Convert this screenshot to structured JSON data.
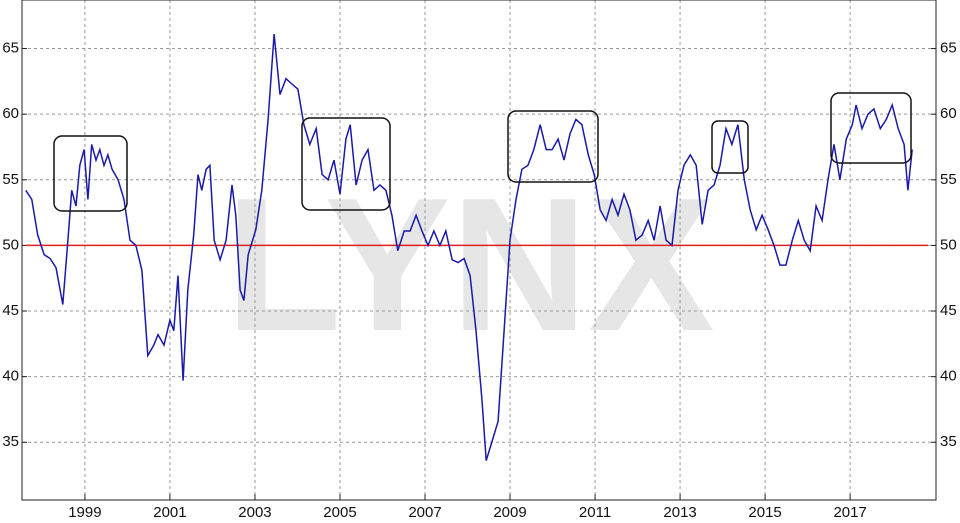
{
  "chart_data": {
    "type": "line",
    "watermark": "LYNX",
    "x": [
      1997.61,
      1997.75,
      1997.89,
      1998.04,
      1998.18,
      1998.32,
      1998.48,
      1998.6,
      1998.69,
      1998.79,
      1998.88,
      1998.98,
      1999.07,
      1999.16,
      1999.26,
      1999.35,
      1999.45,
      1999.54,
      1999.64,
      1999.78,
      1999.92,
      2000.06,
      2000.2,
      2000.34,
      2000.48,
      2000.62,
      2000.72,
      2000.86,
      2001.0,
      2001.09,
      2001.19,
      2001.31,
      2001.42,
      2001.56,
      2001.66,
      2001.75,
      2001.85,
      2001.94,
      2002.04,
      2002.18,
      2002.32,
      2002.46,
      2002.55,
      2002.65,
      2002.74,
      2002.84,
      2003.02,
      2003.16,
      2003.31,
      2003.45,
      2003.59,
      2003.73,
      2003.87,
      2004.01,
      2004.15,
      2004.29,
      2004.44,
      2004.58,
      2004.72,
      2004.86,
      2005.0,
      2005.14,
      2005.24,
      2005.38,
      2005.52,
      2005.66,
      2005.8,
      2005.94,
      2006.08,
      2006.22,
      2006.36,
      2006.51,
      2006.65,
      2006.79,
      2006.93,
      2007.07,
      2007.21,
      2007.35,
      2007.49,
      2007.64,
      2007.78,
      2007.92,
      2008.06,
      2008.2,
      2008.34,
      2008.44,
      2008.58,
      2008.72,
      2008.86,
      2009.0,
      2009.14,
      2009.28,
      2009.42,
      2009.56,
      2009.71,
      2009.85,
      2009.99,
      2010.13,
      2010.27,
      2010.41,
      2010.55,
      2010.69,
      2010.84,
      2010.98,
      2011.12,
      2011.26,
      2011.4,
      2011.54,
      2011.68,
      2011.82,
      2011.96,
      2012.11,
      2012.25,
      2012.39,
      2012.53,
      2012.67,
      2012.81,
      2012.95,
      2013.09,
      2013.24,
      2013.38,
      2013.52,
      2013.66,
      2013.8,
      2013.94,
      2014.08,
      2014.22,
      2014.36,
      2014.51,
      2014.65,
      2014.79,
      2014.93,
      2015.07,
      2015.21,
      2015.35,
      2015.49,
      2015.64,
      2015.78,
      2015.92,
      2016.06,
      2016.2,
      2016.34,
      2016.48,
      2016.62,
      2016.76,
      2016.91,
      2017.05,
      2017.14,
      2017.28,
      2017.42,
      2017.56,
      2017.71,
      2017.85,
      2017.99,
      2018.13,
      2018.27,
      2018.36,
      2018.46
    ],
    "series": [
      {
        "color": "#1a1aa8",
        "values": [
          54.2,
          53.5,
          50.8,
          49.3,
          49.0,
          48.3,
          45.5,
          50.4,
          54.2,
          53.0,
          56.1,
          57.3,
          53.5,
          57.7,
          56.5,
          57.3,
          56.1,
          56.9,
          55.8,
          55.0,
          53.5,
          50.4,
          50.0,
          48.1,
          41.6,
          42.4,
          43.2,
          42.4,
          44.3,
          43.5,
          47.7,
          39.7,
          46.6,
          50.8,
          55.4,
          54.2,
          55.8,
          56.1,
          50.4,
          48.9,
          50.4,
          54.6,
          52.3,
          46.6,
          45.8,
          49.3,
          51.2,
          54.2,
          59.6,
          66.1,
          61.5,
          62.7,
          62.3,
          61.9,
          59.2,
          57.7,
          58.9,
          55.4,
          55.0,
          56.5,
          53.9,
          58.1,
          59.2,
          54.6,
          56.5,
          57.3,
          54.2,
          54.6,
          54.2,
          52.3,
          49.6,
          51.1,
          51.1,
          52.3,
          51.1,
          50.0,
          51.1,
          50.0,
          51.1,
          48.9,
          48.7,
          49.0,
          47.7,
          43.5,
          38.2,
          33.6,
          35.1,
          36.6,
          43.5,
          50.4,
          53.5,
          55.8,
          56.1,
          57.3,
          59.2,
          57.3,
          57.3,
          58.1,
          56.5,
          58.5,
          59.6,
          59.2,
          56.9,
          55.4,
          52.7,
          51.9,
          53.5,
          52.3,
          53.9,
          52.7,
          50.4,
          50.8,
          51.9,
          50.4,
          53.0,
          50.4,
          50.0,
          54.2,
          56.1,
          56.9,
          56.1,
          51.6,
          54.2,
          54.6,
          56.1,
          58.9,
          57.7,
          59.2,
          55.0,
          52.7,
          51.2,
          52.3,
          51.2,
          50.0,
          48.5,
          48.5,
          50.4,
          51.9,
          50.4,
          49.6,
          53.0,
          51.9,
          55.0,
          57.7,
          55.0,
          58.1,
          59.2,
          60.7,
          58.9,
          60.0,
          60.4,
          58.9,
          59.6,
          60.7,
          58.9,
          57.7,
          54.2,
          57.3
        ]
      }
    ],
    "reference_line": 50,
    "reference_color": "#e02020",
    "xlim": [
      1997.52,
      2019.02
    ],
    "xticks": [
      1999,
      2001,
      2003,
      2005,
      2007,
      2009,
      2011,
      2013,
      2015,
      2017
    ],
    "ylim": [
      30.6,
      68.7
    ],
    "yticks": [
      35,
      40,
      45,
      50,
      55,
      60,
      65
    ],
    "grid": true
  }
}
